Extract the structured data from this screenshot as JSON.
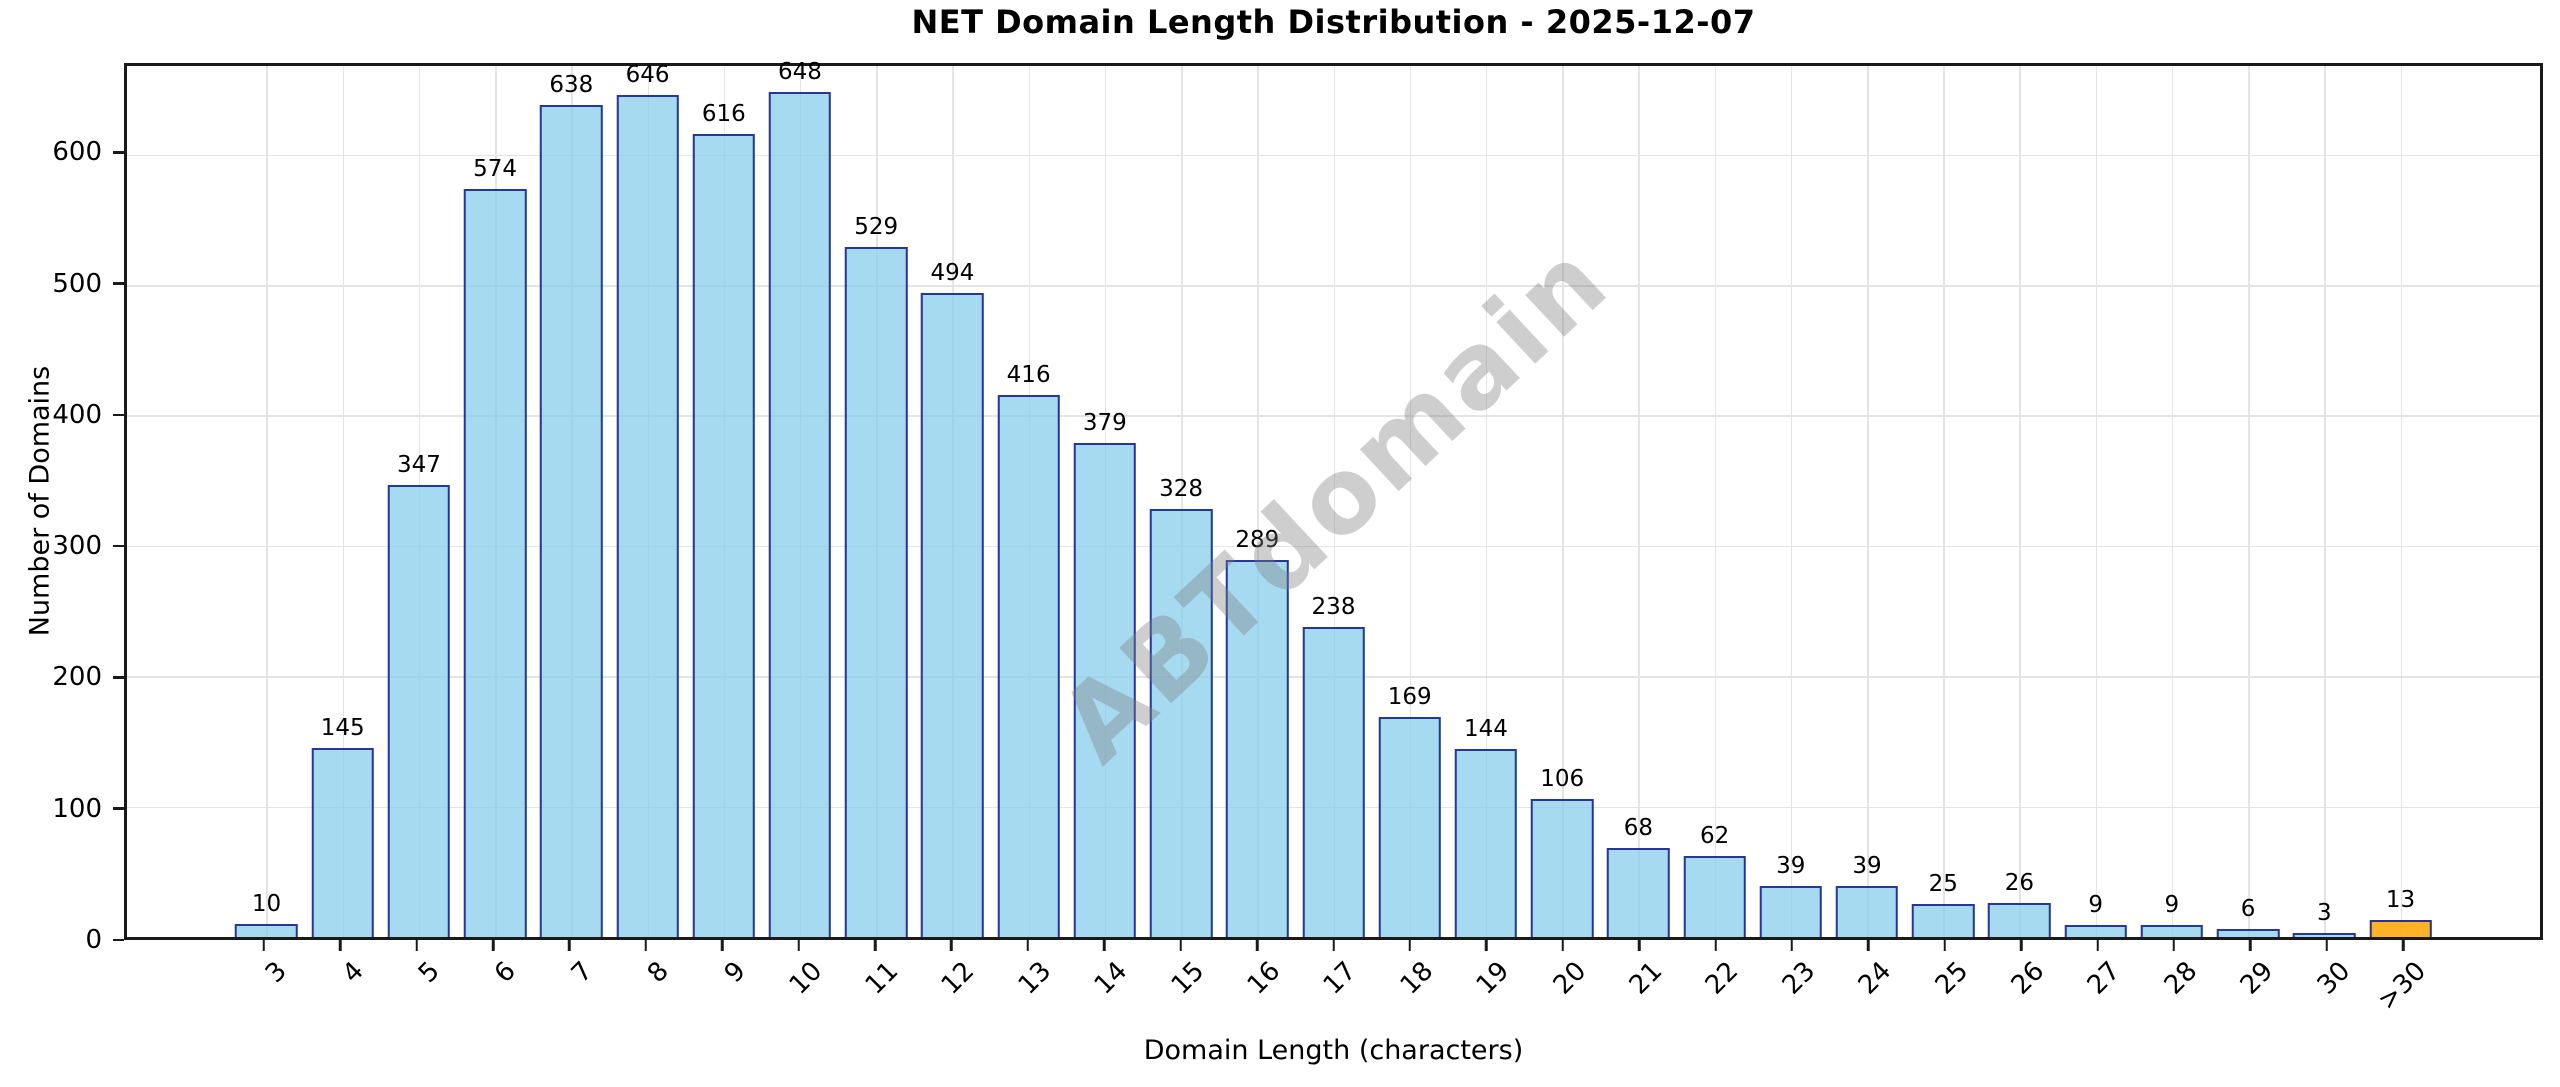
{
  "watermark": "ABTdomain",
  "chart_data": {
    "type": "bar",
    "title": "NET Domain Length Distribution - 2025-12-07",
    "xlabel": "Domain Length (characters)",
    "ylabel": "Number of Domains",
    "categories": [
      "3",
      "4",
      "5",
      "6",
      "7",
      "8",
      "9",
      "10",
      "11",
      "12",
      "13",
      "14",
      "15",
      "16",
      "17",
      "18",
      "19",
      "20",
      "21",
      "22",
      "23",
      "24",
      "25",
      "26",
      "27",
      "28",
      "29",
      "30",
      ">30"
    ],
    "values": [
      10,
      145,
      347,
      574,
      638,
      646,
      616,
      648,
      529,
      494,
      416,
      379,
      328,
      289,
      238,
      169,
      144,
      106,
      68,
      62,
      39,
      39,
      25,
      26,
      9,
      9,
      6,
      3,
      13
    ],
    "bar_labels": [
      "10",
      "145",
      "347",
      "574",
      "638",
      "646",
      "616",
      "648",
      "529",
      "494",
      "416",
      "379",
      "328",
      "289",
      "238",
      "169",
      "144",
      "106",
      "68",
      "62",
      "39",
      "39",
      "25",
      "26",
      "9",
      "9",
      "6",
      "3",
      "13"
    ],
    "ylim": [
      0,
      668
    ],
    "yticks": [
      0,
      100,
      200,
      300,
      400,
      500,
      600
    ],
    "grid": true,
    "legend": "none",
    "highlight": {
      "category": ">30",
      "index": 28
    },
    "colors": {
      "bar_fill": "rgba(135,206,235,0.75)",
      "bar_edge": "rgba(18,24,138,0.85)",
      "highlight_fill": "rgba(255,165,0,0.85)",
      "grid": "#e4e4e4",
      "axis": "#1a1a1a",
      "watermark": "rgba(125,125,125,0.38)",
      "text": "#000000"
    },
    "layout_hints": {
      "pad_categories": 1.83,
      "bar_width_ratio": 0.82
    }
  }
}
